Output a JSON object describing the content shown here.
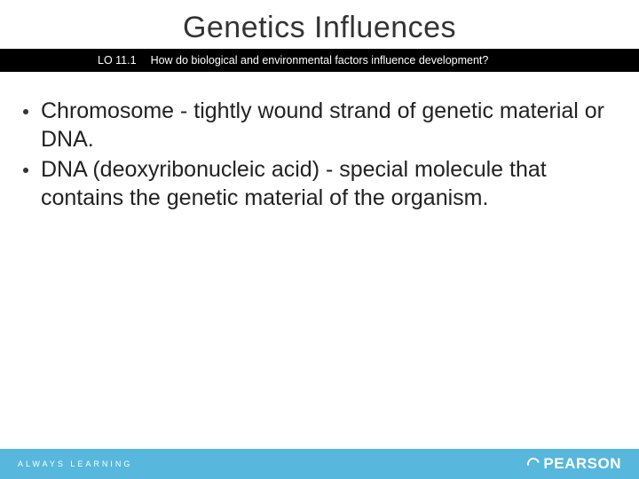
{
  "title": "Genetics Influences",
  "lo": {
    "label": "LO 11.1",
    "question": "How do biological and environmental factors influence development?"
  },
  "bullets": [
    "Chromosome - tightly wound strand of genetic material or DNA.",
    "DNA (deoxyribonucleic acid) - special molecule that contains the genetic material of the organism."
  ],
  "footer": {
    "left": "ALWAYS LEARNING",
    "brand": "PEARSON"
  },
  "colors": {
    "footer_bg": "#57b7dd",
    "lo_bar_bg": "#000000",
    "text": "#222222",
    "background": "#ffffff"
  }
}
